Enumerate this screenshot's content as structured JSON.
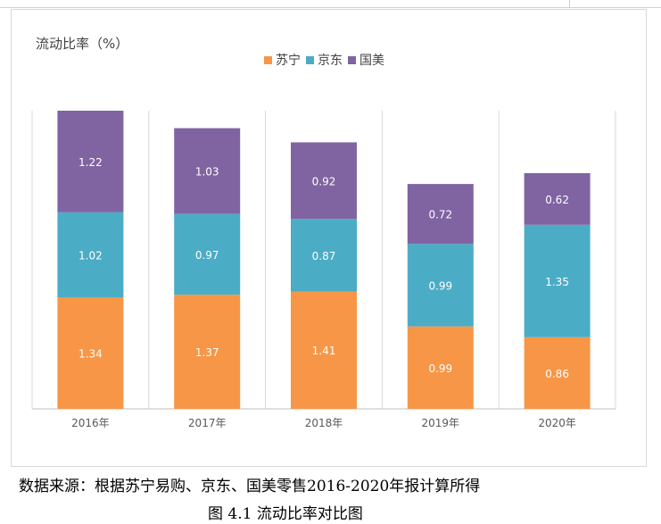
{
  "chart_data": {
    "type": "bar",
    "stacked": true,
    "title": "流动比率（%）",
    "categories": [
      "2016年",
      "2017年",
      "2018年",
      "2019年",
      "2020年"
    ],
    "series": [
      {
        "name": "苏宁",
        "color": "#F79646",
        "values": [
          1.34,
          1.37,
          1.41,
          0.99,
          0.86
        ]
      },
      {
        "name": "京东",
        "color": "#4BACC6",
        "values": [
          1.02,
          0.97,
          0.87,
          0.99,
          1.35
        ]
      },
      {
        "name": "国美",
        "color": "#8064A2",
        "values": [
          1.22,
          1.03,
          0.92,
          0.72,
          0.62
        ]
      }
    ],
    "ymax": 3.58,
    "legend_position": "top-center",
    "grid": true
  },
  "source_note": "数据来源：根据苏宁易购、京东、国美零售2016-2020年报计算所得",
  "caption": "图 4.1 流动比率对比图"
}
